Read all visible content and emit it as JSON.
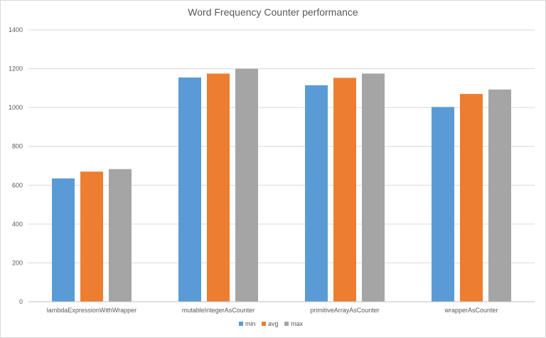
{
  "chart_data": {
    "type": "bar",
    "title": "Word Frequency Counter performance",
    "categories": [
      "lambdaExpressionWithWrapper",
      "mutableIntegerAsCounter",
      "primitiveArrayAsCounter",
      "wrapperAsCounter"
    ],
    "series": [
      {
        "name": "min",
        "values": [
          635,
          1155,
          1115,
          1003
        ],
        "color": "#5b9bd5"
      },
      {
        "name": "avg",
        "values": [
          670,
          1175,
          1153,
          1070
        ],
        "color": "#ed7d31"
      },
      {
        "name": "max",
        "values": [
          683,
          1200,
          1175,
          1093
        ],
        "color": "#a5a5a5"
      }
    ],
    "ylim": [
      0,
      1400
    ],
    "yticks": [
      "0",
      "200",
      "400",
      "600",
      "800",
      "1000",
      "1200",
      "1400"
    ],
    "grid": true,
    "legend": "bottom"
  }
}
